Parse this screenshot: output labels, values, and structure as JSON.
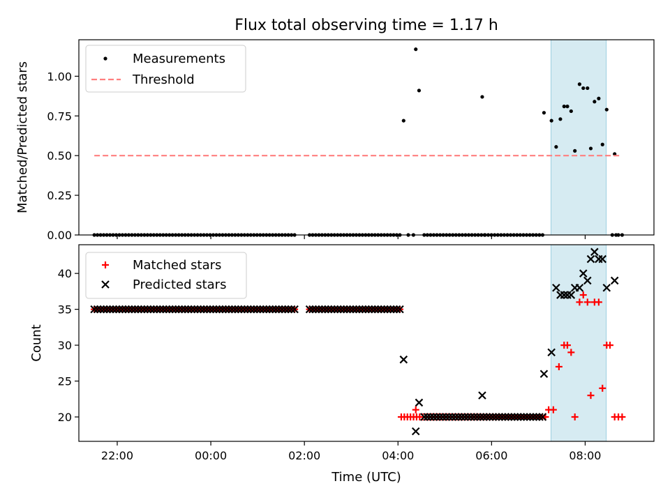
{
  "chart_data": {
    "title": "Flux total observing time = 1.17 h",
    "xlabel": "Time (UTC)",
    "x_unit": "hours UTC (relative to 00:00; values after 24 shown as next-day times)",
    "xlim": [
      -2.82,
      9.47
    ],
    "x_ticks": [
      {
        "value": -2,
        "label": "22:00"
      },
      {
        "value": 0,
        "label": "00:00"
      },
      {
        "value": 2,
        "label": "02:00"
      },
      {
        "value": 4,
        "label": "04:00"
      },
      {
        "value": 6,
        "label": "06:00"
      },
      {
        "value": 8,
        "label": "08:00"
      }
    ],
    "highlight_span": {
      "x0": 7.27,
      "x1": 8.45,
      "color": "#add8e6"
    },
    "panels": [
      {
        "type": "scatter",
        "ylabel": "Matched/Predicted stars",
        "ylim": [
          0,
          1.23
        ],
        "y_ticks": [
          "0.00",
          "0.25",
          "0.50",
          "0.75",
          "1.00"
        ],
        "y_tick_values": [
          0,
          0.25,
          0.5,
          0.75,
          1.0
        ],
        "legend": {
          "position": "top-left",
          "entries": [
            "Measurements",
            "Threshold"
          ]
        },
        "series": [
          {
            "name": "Measurements",
            "kind": "points",
            "color": "#000000",
            "zeros_ranges": [
              [
                -2.49,
                1.79,
                65
              ],
              [
                2.11,
                4.04,
                30
              ],
              [
                4.22,
                4.33,
                2
              ],
              [
                4.56,
                5.85,
                20
              ],
              [
                5.86,
                7.09,
                19
              ],
              [
                8.58,
                8.66,
                2
              ],
              [
                8.71,
                8.79,
                2
              ]
            ],
            "points": [
              [
                4.12,
                0.72
              ],
              [
                4.38,
                1.17
              ],
              [
                4.45,
                0.91
              ],
              [
                5.8,
                0.87
              ],
              [
                7.12,
                0.77
              ],
              [
                7.28,
                0.72
              ],
              [
                7.38,
                0.555
              ],
              [
                7.47,
                0.73
              ],
              [
                7.55,
                0.81
              ],
              [
                7.62,
                0.81
              ],
              [
                7.7,
                0.78
              ],
              [
                7.78,
                0.53
              ],
              [
                7.88,
                0.95
              ],
              [
                7.96,
                0.925
              ],
              [
                8.05,
                0.925
              ],
              [
                8.12,
                0.545
              ],
              [
                8.2,
                0.84
              ],
              [
                8.29,
                0.86
              ],
              [
                8.37,
                0.57
              ],
              [
                8.46,
                0.79
              ],
              [
                8.63,
                0.51
              ]
            ]
          },
          {
            "name": "Threshold",
            "kind": "dashed-line",
            "color": "#ff7f7f",
            "x": [
              -2.49,
              8.77
            ],
            "y": [
              0.5,
              0.5
            ]
          }
        ]
      },
      {
        "type": "scatter",
        "ylabel": "Count",
        "ylim": [
          16.6,
          44.0
        ],
        "y_ticks": [
          "20",
          "25",
          "30",
          "35",
          "40"
        ],
        "y_tick_values": [
          20,
          25,
          30,
          35,
          40
        ],
        "legend": {
          "position": "top-left",
          "entries": [
            "Matched stars",
            "Predicted stars"
          ]
        },
        "series": [
          {
            "name": "Matched stars",
            "kind": "plus",
            "color": "#ff0000",
            "constant_ranges": [
              [
                -2.49,
                1.79,
                65,
                35
              ],
              [
                2.11,
                4.04,
                30,
                35
              ],
              [
                4.07,
                7.15,
                48,
                20
              ]
            ],
            "points": [
              [
                4.38,
                21
              ],
              [
                7.22,
                21
              ],
              [
                7.32,
                21
              ],
              [
                7.44,
                27
              ],
              [
                7.55,
                30
              ],
              [
                7.62,
                30
              ],
              [
                7.7,
                29
              ],
              [
                7.78,
                20
              ],
              [
                7.88,
                36
              ],
              [
                7.96,
                37
              ],
              [
                8.05,
                36
              ],
              [
                8.12,
                23
              ],
              [
                8.2,
                36
              ],
              [
                8.29,
                36
              ],
              [
                8.37,
                24
              ],
              [
                8.46,
                30
              ],
              [
                8.53,
                30
              ],
              [
                8.63,
                20
              ],
              [
                8.71,
                20
              ],
              [
                8.79,
                20
              ]
            ]
          },
          {
            "name": "Predicted stars",
            "kind": "x",
            "color": "#000000",
            "constant_ranges": [
              [
                -2.49,
                1.79,
                65,
                35
              ],
              [
                2.11,
                4.04,
                30,
                35
              ],
              [
                4.56,
                7.09,
                39,
                20
              ]
            ],
            "points": [
              [
                4.12,
                28
              ],
              [
                4.38,
                18
              ],
              [
                4.45,
                22
              ],
              [
                5.8,
                23
              ],
              [
                7.12,
                26
              ],
              [
                7.28,
                29
              ],
              [
                7.38,
                38
              ],
              [
                7.47,
                37
              ],
              [
                7.55,
                37
              ],
              [
                7.62,
                37
              ],
              [
                7.7,
                37
              ],
              [
                7.78,
                38
              ],
              [
                7.88,
                38
              ],
              [
                7.96,
                40
              ],
              [
                8.05,
                39
              ],
              [
                8.12,
                42
              ],
              [
                8.2,
                43
              ],
              [
                8.29,
                42
              ],
              [
                8.37,
                42
              ],
              [
                8.46,
                38
              ],
              [
                8.63,
                39
              ]
            ]
          }
        ]
      }
    ]
  }
}
